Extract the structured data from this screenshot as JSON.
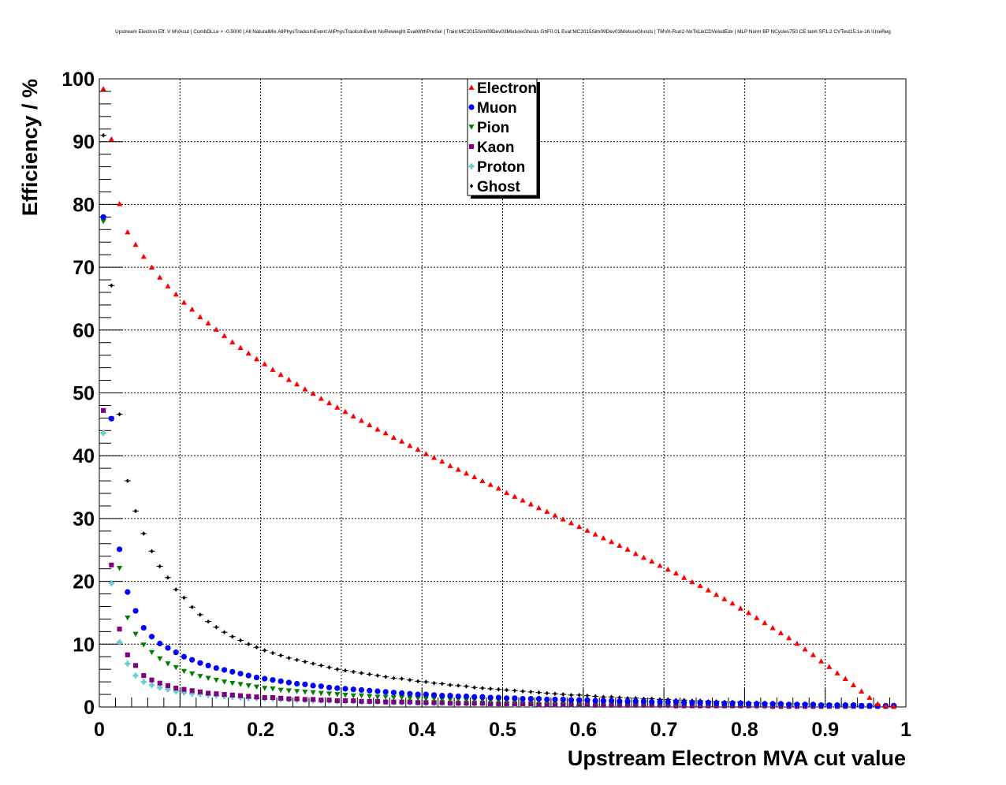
{
  "chart_data": {
    "type": "scatter",
    "title": "Upstream Electron Eff. V MVAcut | CombDLLe > -0.5000 | All NaturalMix AllPhysTracksInEvent:AllPhysTracksInEvent NoReweight EvalWithPreSel | Train:MC2015Sim09Dev03MixtureGhosts GhF0.01 Eval:MC2015Sim09Dev03MixtureGhosts | TMVA-Run2-NoTkLikCDVelodEdx | MLP Norm BP NCycles750 CE tanh SF1.2 CVTest15:1e-16 !UseReg",
    "xlabel": "Upstream Electron MVA cut value",
    "ylabel": "Efficiency / %",
    "xlim": [
      0,
      1
    ],
    "ylim": [
      0,
      100
    ],
    "x_ticks": [
      "0",
      "0.1",
      "0.2",
      "0.3",
      "0.4",
      "0.5",
      "0.6",
      "0.7",
      "0.8",
      "0.9",
      "1"
    ],
    "y_ticks": [
      "0",
      "10",
      "20",
      "30",
      "40",
      "50",
      "60",
      "70",
      "80",
      "90",
      "100"
    ],
    "grid": true,
    "legend_position": "top-center",
    "x": [
      0.005,
      0.015,
      0.025,
      0.035,
      0.045,
      0.055,
      0.065,
      0.075,
      0.085,
      0.095,
      0.105,
      0.115,
      0.125,
      0.135,
      0.145,
      0.155,
      0.165,
      0.175,
      0.185,
      0.195,
      0.205,
      0.215,
      0.225,
      0.235,
      0.245,
      0.255,
      0.265,
      0.275,
      0.285,
      0.295,
      0.305,
      0.315,
      0.325,
      0.335,
      0.345,
      0.355,
      0.365,
      0.375,
      0.385,
      0.395,
      0.405,
      0.415,
      0.425,
      0.435,
      0.445,
      0.455,
      0.465,
      0.475,
      0.485,
      0.495,
      0.505,
      0.515,
      0.525,
      0.535,
      0.545,
      0.555,
      0.565,
      0.575,
      0.585,
      0.595,
      0.605,
      0.615,
      0.625,
      0.635,
      0.645,
      0.655,
      0.665,
      0.675,
      0.685,
      0.695,
      0.705,
      0.715,
      0.725,
      0.735,
      0.745,
      0.755,
      0.765,
      0.775,
      0.785,
      0.795,
      0.805,
      0.815,
      0.825,
      0.835,
      0.845,
      0.855,
      0.865,
      0.875,
      0.885,
      0.895,
      0.905,
      0.915,
      0.925,
      0.935,
      0.945,
      0.955,
      0.965,
      0.975,
      0.985
    ],
    "series": [
      {
        "name": "Electron",
        "color": "#ff0000",
        "marker": "triangle-up",
        "values": [
          98.4,
          90.4,
          80.1,
          75.6,
          73.6,
          71.7,
          70.0,
          68.4,
          67.0,
          65.7,
          64.4,
          63.3,
          62.1,
          61.1,
          60.1,
          59.1,
          58.1,
          57.2,
          56.3,
          55.4,
          54.6,
          53.7,
          52.9,
          52.1,
          51.4,
          50.6,
          49.9,
          49.1,
          48.4,
          47.7,
          47.0,
          46.3,
          45.6,
          44.9,
          44.2,
          43.6,
          42.9,
          42.3,
          41.6,
          41.0,
          40.3,
          39.7,
          39.1,
          38.4,
          37.8,
          37.2,
          36.6,
          36.0,
          35.4,
          34.8,
          34.1,
          33.5,
          32.9,
          32.3,
          31.7,
          31.1,
          30.5,
          29.9,
          29.3,
          28.7,
          28.1,
          27.5,
          26.9,
          26.3,
          25.7,
          25.1,
          24.4,
          23.8,
          23.2,
          22.5,
          21.9,
          21.3,
          20.6,
          19.9,
          19.3,
          18.6,
          17.9,
          17.2,
          16.5,
          15.7,
          15.0,
          14.2,
          13.4,
          12.6,
          11.8,
          11.0,
          10.1,
          9.2,
          8.3,
          7.3,
          6.4,
          5.4,
          4.5,
          3.5,
          2.5,
          1.5,
          0.5,
          0.2,
          0.1
        ]
      },
      {
        "name": "Muon",
        "color": "#0000ff",
        "marker": "circle",
        "values": [
          78.0,
          45.9,
          25.1,
          18.3,
          15.3,
          12.6,
          11.2,
          10.1,
          9.4,
          8.7,
          8.0,
          7.5,
          7.0,
          6.6,
          6.2,
          5.9,
          5.6,
          5.3,
          5.0,
          4.7,
          4.5,
          4.3,
          4.1,
          3.9,
          3.7,
          3.6,
          3.4,
          3.3,
          3.1,
          3.0,
          2.9,
          2.8,
          2.7,
          2.6,
          2.5,
          2.4,
          2.3,
          2.2,
          2.1,
          2.0,
          2.0,
          1.9,
          1.8,
          1.8,
          1.7,
          1.7,
          1.6,
          1.6,
          1.5,
          1.5,
          1.4,
          1.4,
          1.3,
          1.3,
          1.3,
          1.2,
          1.2,
          1.2,
          1.1,
          1.1,
          1.1,
          1.0,
          1.0,
          1.0,
          0.9,
          0.9,
          0.9,
          0.9,
          0.8,
          0.8,
          0.8,
          0.8,
          0.7,
          0.7,
          0.7,
          0.7,
          0.6,
          0.6,
          0.6,
          0.6,
          0.5,
          0.5,
          0.5,
          0.5,
          0.5,
          0.4,
          0.4,
          0.4,
          0.4,
          0.3,
          0.3,
          0.3,
          0.3,
          0.3,
          0.2,
          0.2,
          0.2,
          0.2,
          0.2
        ]
      },
      {
        "name": "Pion",
        "color": "#008000",
        "marker": "triangle-down",
        "values": [
          77.3,
          45.9,
          22.1,
          14.2,
          11.6,
          9.9,
          8.7,
          7.7,
          6.9,
          6.3,
          5.7,
          5.3,
          4.9,
          4.6,
          4.3,
          4.0,
          3.8,
          3.6,
          3.4,
          3.2,
          3.0,
          2.9,
          2.7,
          2.6,
          2.5,
          2.4,
          2.3,
          2.2,
          2.1,
          2.0,
          1.9,
          1.8,
          1.8,
          1.7,
          1.6,
          1.6,
          1.5,
          1.5,
          1.4,
          1.4,
          1.3,
          1.3,
          1.2,
          1.2,
          1.2,
          1.1,
          1.1,
          1.1,
          1.0,
          1.0,
          1.0,
          0.9,
          0.9,
          0.9,
          0.9,
          0.8,
          0.8,
          0.8,
          0.8,
          0.7,
          0.7,
          0.7,
          0.7,
          0.7,
          0.6,
          0.6,
          0.6,
          0.6,
          0.6,
          0.5,
          0.5,
          0.5,
          0.5,
          0.5,
          0.5,
          0.4,
          0.4,
          0.4,
          0.4,
          0.4,
          0.4,
          0.3,
          0.3,
          0.3,
          0.3,
          0.3,
          0.3,
          0.3,
          0.2,
          0.2,
          0.2,
          0.2,
          0.2,
          0.2,
          0.2,
          0.2,
          0.1,
          0.1,
          0.1
        ]
      },
      {
        "name": "Kaon",
        "color": "#800080",
        "marker": "square",
        "values": [
          47.2,
          22.6,
          12.4,
          8.3,
          6.6,
          5.0,
          4.3,
          3.8,
          3.4,
          3.0,
          2.8,
          2.6,
          2.4,
          2.2,
          2.1,
          2.0,
          1.9,
          1.8,
          1.7,
          1.6,
          1.5,
          1.5,
          1.4,
          1.3,
          1.3,
          1.2,
          1.2,
          1.1,
          1.1,
          1.0,
          1.0,
          1.0,
          0.9,
          0.9,
          0.9,
          0.8,
          0.8,
          0.8,
          0.8,
          0.7,
          0.7,
          0.7,
          0.7,
          0.6,
          0.6,
          0.6,
          0.6,
          0.6,
          0.5,
          0.5,
          0.5,
          0.5,
          0.5,
          0.5,
          0.4,
          0.4,
          0.4,
          0.4,
          0.4,
          0.4,
          0.4,
          0.3,
          0.3,
          0.3,
          0.3,
          0.3,
          0.3,
          0.3,
          0.3,
          0.3,
          0.3,
          0.2,
          0.2,
          0.2,
          0.2,
          0.2,
          0.2,
          0.2,
          0.2,
          0.2,
          0.2,
          0.2,
          0.2,
          0.1,
          0.1,
          0.1,
          0.1,
          0.1,
          0.1,
          0.1,
          0.1,
          0.1,
          0.1,
          0.1,
          0.1,
          0.1,
          0.1,
          0.1,
          0.1
        ]
      },
      {
        "name": "Proton",
        "color": "#66cccc",
        "marker": "cross",
        "values": [
          43.6,
          19.7,
          10.3,
          6.9,
          5.0,
          4.0,
          3.5,
          3.1,
          2.8,
          2.5,
          2.3,
          2.1,
          2.0,
          1.9,
          1.8,
          1.7,
          1.6,
          1.5,
          1.4,
          1.4,
          1.3,
          1.3,
          1.2,
          1.2,
          1.1,
          1.1,
          1.0,
          1.0,
          1.0,
          0.9,
          0.9,
          0.9,
          0.8,
          0.8,
          0.8,
          0.8,
          0.7,
          0.7,
          0.7,
          0.7,
          0.6,
          0.6,
          0.6,
          0.6,
          0.6,
          0.5,
          0.5,
          0.5,
          0.5,
          0.5,
          0.5,
          0.4,
          0.4,
          0.4,
          0.4,
          0.4,
          0.4,
          0.4,
          0.4,
          0.3,
          0.3,
          0.3,
          0.3,
          0.3,
          0.3,
          0.3,
          0.3,
          0.3,
          0.3,
          0.2,
          0.2,
          0.2,
          0.2,
          0.2,
          0.2,
          0.2,
          0.2,
          0.2,
          0.2,
          0.2,
          0.2,
          0.1,
          0.1,
          0.1,
          0.1,
          0.1,
          0.1,
          0.1,
          0.1,
          0.1,
          0.1,
          0.1,
          0.1,
          0.1,
          0.1,
          0.1,
          0.1,
          0.1,
          0.1
        ]
      },
      {
        "name": "Ghost",
        "color": "#000000",
        "marker": "diamond",
        "values": [
          91.0,
          67.1,
          46.6,
          36.0,
          31.2,
          27.6,
          24.8,
          22.4,
          20.6,
          18.7,
          17.4,
          15.9,
          14.7,
          13.6,
          12.7,
          11.9,
          11.2,
          10.6,
          10.0,
          9.5,
          9.0,
          8.6,
          8.2,
          7.8,
          7.5,
          7.2,
          6.9,
          6.6,
          6.3,
          6.0,
          5.8,
          5.6,
          5.4,
          5.2,
          5.0,
          4.8,
          4.6,
          4.5,
          4.3,
          4.1,
          4.0,
          3.8,
          3.7,
          3.5,
          3.4,
          3.3,
          3.1,
          3.0,
          2.9,
          2.8,
          2.7,
          2.6,
          2.5,
          2.4,
          2.3,
          2.2,
          2.1,
          2.0,
          1.9,
          1.9,
          1.8,
          1.7,
          1.6,
          1.6,
          1.5,
          1.4,
          1.4,
          1.3,
          1.3,
          1.2,
          1.2,
          1.1,
          1.1,
          1.0,
          1.0,
          0.9,
          0.9,
          0.8,
          0.8,
          0.8,
          0.7,
          0.7,
          0.6,
          0.6,
          0.6,
          0.5,
          0.5,
          0.5,
          0.4,
          0.4,
          0.4,
          0.3,
          0.3,
          0.3,
          0.2,
          0.2,
          0.2,
          0.1,
          0.1
        ]
      }
    ]
  }
}
